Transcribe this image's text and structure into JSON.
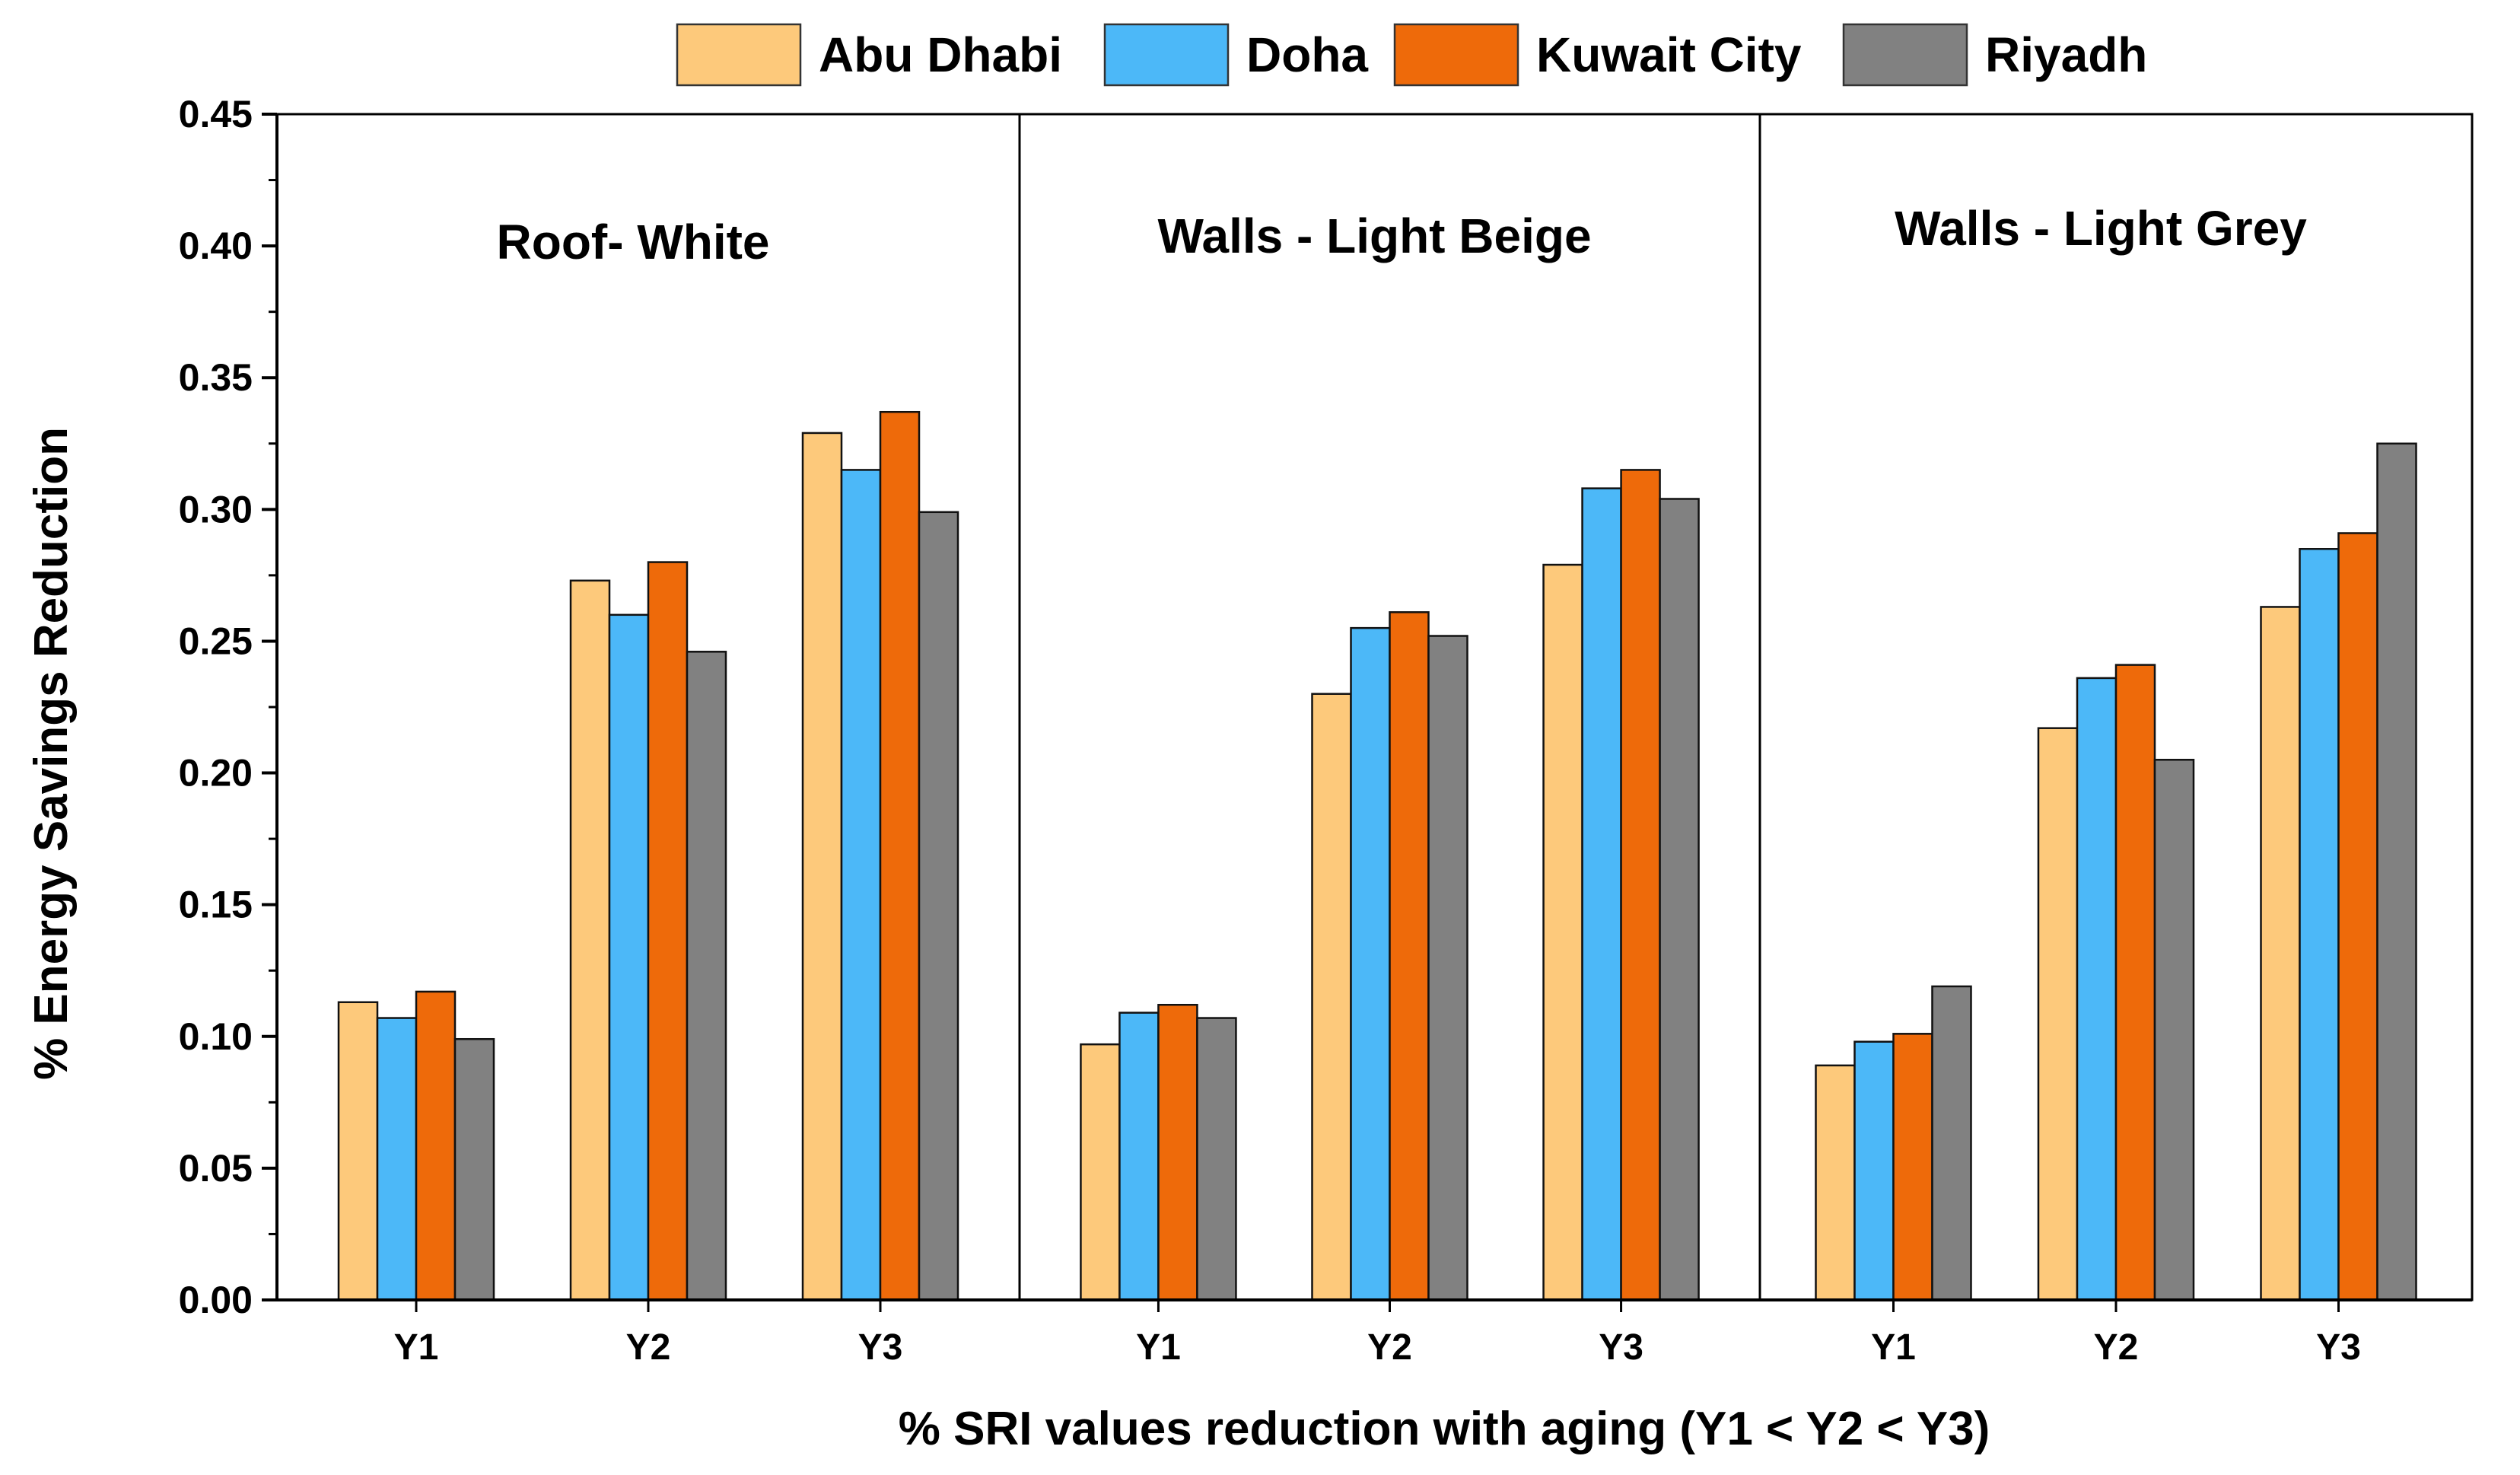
{
  "chart_data": {
    "type": "bar",
    "xlabel": "% SRI values reduction with aging (Y1 < Y2 < Y3)",
    "ylabel": "% Energy Savings Reduction",
    "ylim": [
      0,
      0.45
    ],
    "yticks": [
      "0.00",
      "0.05",
      "0.10",
      "0.15",
      "0.20",
      "0.25",
      "0.30",
      "0.35",
      "0.40",
      "0.45"
    ],
    "legend_position": "top-center",
    "series_names": [
      "Abu Dhabi",
      "Doha",
      "Kuwait City",
      "Riyadh"
    ],
    "series_colors": [
      "#FDC97B",
      "#4CB8F8",
      "#EE6A0A",
      "#818181"
    ],
    "categories": [
      "Y1",
      "Y2",
      "Y3"
    ],
    "panels": [
      {
        "title": "Roof- White",
        "series": [
          {
            "name": "Abu Dhabi",
            "values": [
              0.113,
              0.273,
              0.329
            ]
          },
          {
            "name": "Doha",
            "values": [
              0.107,
              0.26,
              0.315
            ]
          },
          {
            "name": "Kuwait City",
            "values": [
              0.117,
              0.28,
              0.337
            ]
          },
          {
            "name": "Riyadh",
            "values": [
              0.099,
              0.246,
              0.299
            ]
          }
        ]
      },
      {
        "title": "Walls - Light Beige",
        "series": [
          {
            "name": "Abu Dhabi",
            "values": [
              0.097,
              0.23,
              0.279
            ]
          },
          {
            "name": "Doha",
            "values": [
              0.109,
              0.255,
              0.308
            ]
          },
          {
            "name": "Kuwait City",
            "values": [
              0.112,
              0.261,
              0.315
            ]
          },
          {
            "name": "Riyadh",
            "values": [
              0.107,
              0.252,
              0.304
            ]
          }
        ]
      },
      {
        "title": "Walls - Light Grey",
        "series": [
          {
            "name": "Abu Dhabi",
            "values": [
              0.089,
              0.217,
              0.263
            ]
          },
          {
            "name": "Doha",
            "values": [
              0.098,
              0.236,
              0.285
            ]
          },
          {
            "name": "Kuwait City",
            "values": [
              0.101,
              0.241,
              0.291
            ]
          },
          {
            "name": "Riyadh",
            "values": [
              0.119,
              0.205,
              0.325
            ]
          }
        ]
      }
    ]
  }
}
